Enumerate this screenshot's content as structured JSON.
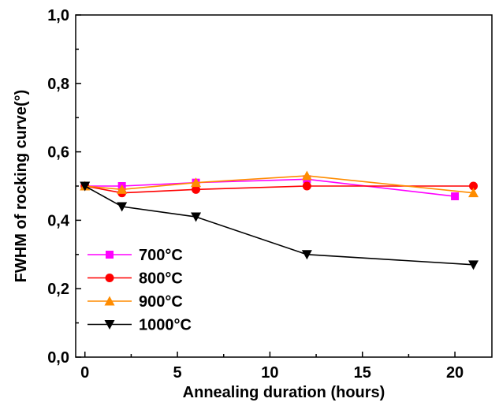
{
  "chart_data": {
    "type": "line",
    "xlabel": "Annealing duration (hours)",
    "ylabel": "FWHM of rocking curve(°)",
    "xlim": [
      -0.5,
      22
    ],
    "ylim": [
      0,
      1.0
    ],
    "x_ticks": [
      0,
      5,
      10,
      15,
      20
    ],
    "x_tick_labels": [
      "0",
      "5",
      "10",
      "15",
      "20"
    ],
    "y_ticks": [
      0,
      0.2,
      0.4,
      0.6,
      0.8,
      1.0
    ],
    "y_tick_labels": [
      "0,0",
      "0,2",
      "0,4",
      "0,6",
      "0,8",
      "1,0"
    ],
    "grid": false,
    "legend_position": "bottom-left",
    "series": [
      {
        "name": "700°C",
        "color": "#ff00ff",
        "marker": "square",
        "points": [
          [
            0,
            0.5
          ],
          [
            2,
            0.5
          ],
          [
            6,
            0.51
          ],
          [
            12,
            0.52
          ],
          [
            20,
            0.47
          ]
        ]
      },
      {
        "name": "800°C",
        "color": "#ff0000",
        "marker": "circle",
        "points": [
          [
            0,
            0.5
          ],
          [
            2,
            0.48
          ],
          [
            6,
            0.49
          ],
          [
            12,
            0.5
          ],
          [
            21,
            0.5
          ]
        ]
      },
      {
        "name": "900°C",
        "color": "#ff8c00",
        "marker": "triangle-up",
        "points": [
          [
            0,
            0.5
          ],
          [
            2,
            0.49
          ],
          [
            6,
            0.51
          ],
          [
            12,
            0.53
          ],
          [
            21,
            0.48
          ]
        ]
      },
      {
        "name": "1000°C",
        "color": "#000000",
        "marker": "triangle-down",
        "points": [
          [
            0,
            0.5
          ],
          [
            2,
            0.44
          ],
          [
            6,
            0.41
          ],
          [
            12,
            0.3
          ],
          [
            21,
            0.27
          ]
        ]
      }
    ]
  }
}
